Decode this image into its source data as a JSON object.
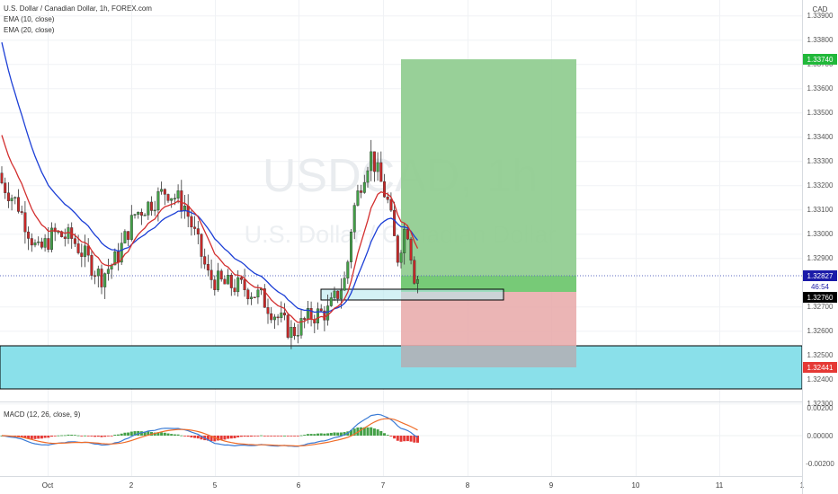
{
  "header": {
    "symbol_title": "U.S. Dollar / Canadian Dollar, 1h, FOREX.com",
    "indicator1": "EMA (10, close)",
    "indicator2": "EMA (20, close)",
    "currency": "CAD"
  },
  "watermark": {
    "ticker": "USDCAD, 1h",
    "name": "U.S. Dollar / Canadian Dollar"
  },
  "colors": {
    "ema10": "#d32f2f",
    "ema20": "#1c3fd6",
    "up": "#43a047",
    "down": "#c62828",
    "profit": "#8fcc8f",
    "stop": "#e8a8a8",
    "support_zone": "#8ae0ea",
    "macd_line": "#3a7bd5",
    "signal_line": "#ef6c28",
    "hist_pos": "#43a047",
    "hist_neg": "#e53935",
    "tag_price": "#1a1aa8",
    "tag_tp": "#21b83a",
    "tag_sl": "#e53935",
    "tag_entry": "#000000"
  },
  "price_axis": {
    "ticks": [
      "1.33900",
      "1.33800",
      "1.33700",
      "1.33600",
      "1.33500",
      "1.33400",
      "1.33300",
      "1.33200",
      "1.33100",
      "1.33000",
      "1.32900",
      "1.32700",
      "1.32600",
      "1.32500",
      "1.32400",
      "1.32300"
    ],
    "tags": {
      "take_profit": "1.33740",
      "current_price": "1.32827",
      "countdown": "46:54",
      "entry": "1.32760",
      "stop_loss": "1.32441"
    }
  },
  "time_axis": {
    "labels": [
      "Oct",
      "2",
      "5",
      "6",
      "7",
      "8",
      "9",
      "10",
      "11",
      "1"
    ]
  },
  "macd": {
    "title": "MACD (12, 26, close, 9)",
    "ticks": [
      "0.00200",
      "0.00000",
      "-0.00200"
    ]
  },
  "chart_data": {
    "type": "candlestick",
    "title": "U.S. Dollar / Canadian Dollar, 1h, FOREX.com",
    "ylabel": "CAD",
    "ylim": [
      1.3229,
      1.3397
    ],
    "x_labels": [
      "Oct",
      "2",
      "5",
      "6",
      "7",
      "8",
      "9",
      "10",
      "11",
      "1"
    ],
    "last_price": 1.32827,
    "series": [
      {
        "name": "EMA (10, close)"
      },
      {
        "name": "EMA (20, close)"
      }
    ],
    "position": {
      "type": "long",
      "entry": 1.3276,
      "take_profit": 1.3374,
      "stop_loss": 1.32441
    },
    "macd": {
      "name": "MACD (12, 26, close, 9)",
      "ylim": [
        -0.0027,
        0.0027
      ]
    }
  }
}
